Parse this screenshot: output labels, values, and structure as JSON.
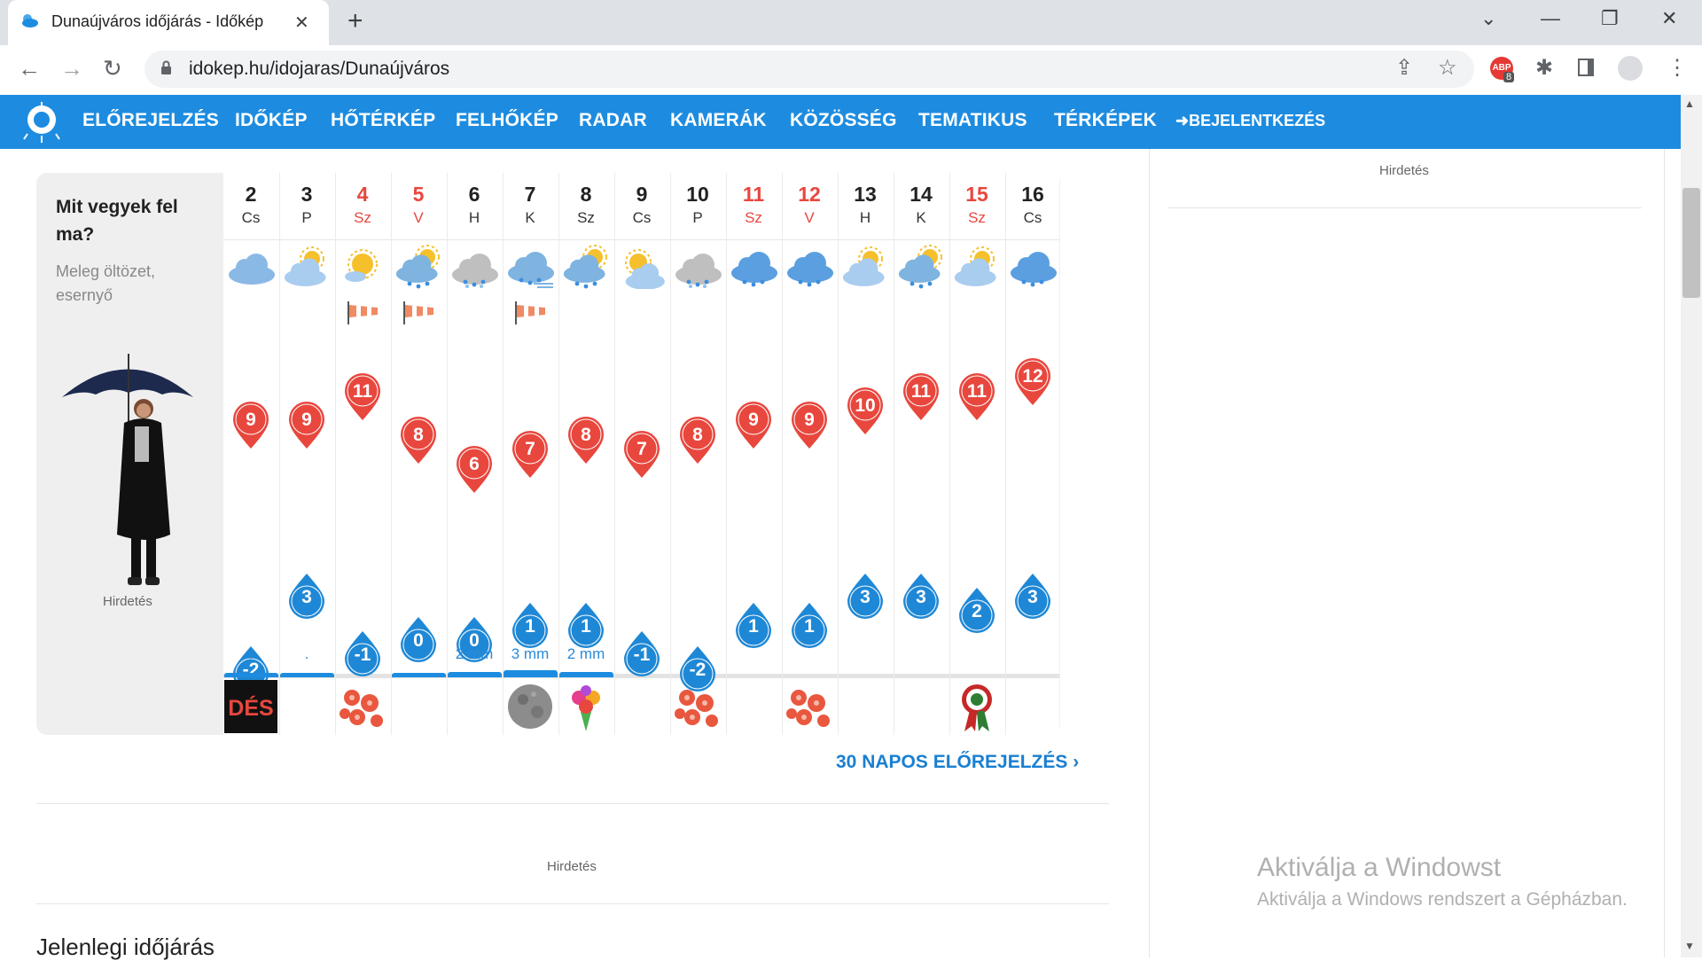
{
  "browser": {
    "tab_title": "Dunaújváros időjárás - Időkép",
    "url": "idokep.hu/idojaras/Dunaújváros",
    "adblock_count": "8"
  },
  "nav": {
    "items": [
      "ELŐREJELZÉS",
      "IDŐKÉP",
      "HŐTÉRKÉP",
      "FELHŐKÉP",
      "RADAR",
      "KAMERÁK",
      "KÖZÖSSÉG",
      "TEMATIKUS",
      "TÉRKÉPEK"
    ],
    "login": "BEJELENTKEZÉS"
  },
  "panel": {
    "title": "Mit vegyek fel ma?",
    "subtitle": "Meleg öltözet, esernyő",
    "ad_label": "Hirdetés"
  },
  "days": [
    {
      "num": "2",
      "name": "Cs",
      "red": false,
      "max": "9",
      "min": "-2",
      "precip": ".",
      "bar": true,
      "icon": "cloudy",
      "wind": "",
      "event": "des"
    },
    {
      "num": "3",
      "name": "P",
      "red": false,
      "max": "9",
      "min": "3",
      "precip": ".",
      "bar": true,
      "icon": "partly-cloudy",
      "wind": "",
      "event": ""
    },
    {
      "num": "4",
      "name": "Sz",
      "red": true,
      "max": "11",
      "min": "-1",
      "precip": "",
      "bar": false,
      "icon": "sunny",
      "wind": "windsock",
      "event": "flowers"
    },
    {
      "num": "5",
      "name": "V",
      "red": true,
      "max": "8",
      "min": "0",
      "precip": ".",
      "bar": true,
      "icon": "rain-sun",
      "wind": "windsock",
      "event": ""
    },
    {
      "num": "6",
      "name": "H",
      "red": false,
      "max": "6",
      "min": "0",
      "precip": "2 mm",
      "bar": true,
      "icon": "sleet",
      "wind": "",
      "event": ""
    },
    {
      "num": "7",
      "name": "K",
      "red": false,
      "max": "7",
      "min": "1",
      "precip": "3 mm",
      "bar": true,
      "icon": "rain-wind",
      "wind": "windsock",
      "event": "moon"
    },
    {
      "num": "8",
      "name": "Sz",
      "red": false,
      "max": "8",
      "min": "1",
      "precip": "2 mm",
      "bar": true,
      "icon": "rain-sun",
      "wind": "",
      "event": "bouquet"
    },
    {
      "num": "9",
      "name": "Cs",
      "red": false,
      "max": "7",
      "min": "-1",
      "precip": "",
      "bar": false,
      "icon": "sun-cloud",
      "wind": "",
      "event": ""
    },
    {
      "num": "10",
      "name": "P",
      "red": false,
      "max": "8",
      "min": "-2",
      "precip": "",
      "bar": false,
      "icon": "sleet",
      "wind": "",
      "event": "flowers"
    },
    {
      "num": "11",
      "name": "Sz",
      "red": true,
      "max": "9",
      "min": "1",
      "precip": "",
      "bar": false,
      "icon": "rain",
      "wind": "",
      "event": ""
    },
    {
      "num": "12",
      "name": "V",
      "red": true,
      "max": "9",
      "min": "1",
      "precip": "",
      "bar": false,
      "icon": "rain",
      "wind": "",
      "event": "flowers"
    },
    {
      "num": "13",
      "name": "H",
      "red": false,
      "max": "10",
      "min": "3",
      "precip": "",
      "bar": false,
      "icon": "partly-cloudy",
      "wind": "",
      "event": ""
    },
    {
      "num": "14",
      "name": "K",
      "red": false,
      "max": "11",
      "min": "3",
      "precip": "",
      "bar": false,
      "icon": "rain-sun",
      "wind": "",
      "event": ""
    },
    {
      "num": "15",
      "name": "Sz",
      "red": true,
      "max": "11",
      "min": "2",
      "precip": "",
      "bar": false,
      "icon": "partly-cloudy",
      "wind": "",
      "event": "cockade"
    },
    {
      "num": "16",
      "name": "Cs",
      "red": false,
      "max": "12",
      "min": "3",
      "precip": "",
      "bar": false,
      "icon": "rain",
      "wind": "",
      "event": ""
    }
  ],
  "more_link": "30 NAPOS ELŐREJELZÉS",
  "mid_ad_label": "Hirdetés",
  "current_title": "Jelenlegi időjárás",
  "right_ad_label": "Hirdetés",
  "windows": {
    "title": "Aktiválja a Windowst",
    "subtitle": "Aktiválja a Windows rendszert a Gépházban."
  },
  "colors": {
    "brand": "#1d8ce0",
    "max_pin": "#e8473e",
    "min_pin": "#1f88d6",
    "weekend": "#e8473e"
  }
}
